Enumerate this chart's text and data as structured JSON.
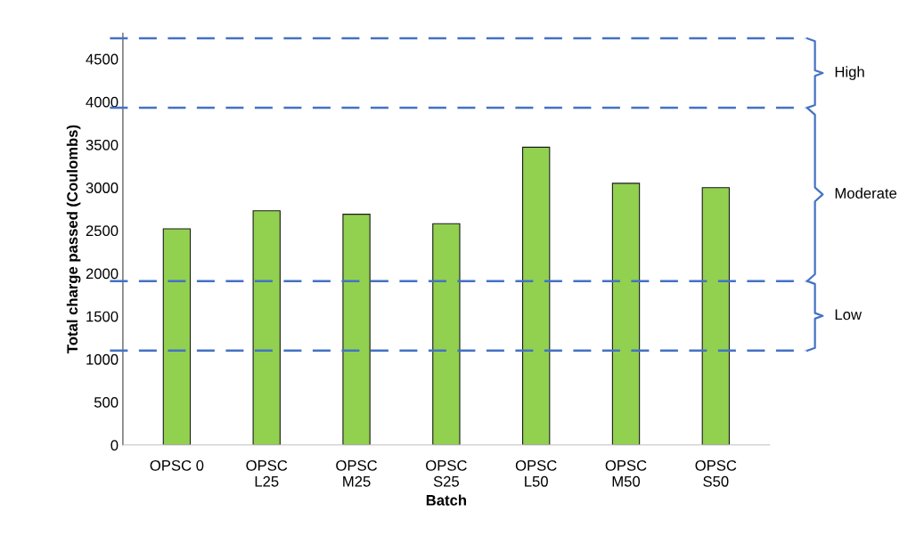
{
  "chart_data": {
    "type": "bar",
    "categories": [
      "OPSC 0",
      "OPSC\nL25",
      "OPSC\nM25",
      "OPSC\nS25",
      "OPSC\nL50",
      "OPSC\nM50",
      "OPSC\nS50"
    ],
    "values": [
      2520,
      2730,
      2690,
      2580,
      3470,
      3050,
      3000
    ],
    "color": "#92d050",
    "xlabel": "Batch",
    "ylabel": "Total charge passed (Coulombs)",
    "ylim": [
      0,
      4800
    ],
    "yticks": [
      0,
      500,
      1000,
      1500,
      2000,
      2500,
      3000,
      3500,
      4000,
      4500
    ],
    "grid": false,
    "ref_lines": [
      {
        "axis": "y",
        "value": 4740,
        "color": "#4472c4",
        "line_style": "dashed"
      },
      {
        "axis": "y",
        "value": 3930,
        "color": "#4472c4",
        "line_style": "dashed"
      },
      {
        "axis": "y",
        "value": 1910,
        "color": "#4472c4",
        "line_style": "dashed"
      },
      {
        "axis": "y",
        "value": 1100,
        "color": "#4472c4",
        "line_style": "dashed"
      }
    ],
    "annotations": [
      "High",
      "Moderate",
      "Low"
    ]
  }
}
